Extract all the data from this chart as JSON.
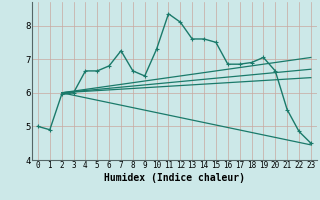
{
  "xlabel": "Humidex (Indice chaleur)",
  "background_color": "#cce8e8",
  "grid_color": "#b8d8d0",
  "line_color": "#1a7a6a",
  "xlim": [
    -0.5,
    23.5
  ],
  "ylim": [
    4.0,
    8.7
  ],
  "yticks": [
    4,
    5,
    6,
    7,
    8
  ],
  "xticks": [
    0,
    1,
    2,
    3,
    4,
    5,
    6,
    7,
    8,
    9,
    10,
    11,
    12,
    13,
    14,
    15,
    16,
    17,
    18,
    19,
    20,
    21,
    22,
    23
  ],
  "main_line": {
    "x": [
      0,
      1,
      2,
      3,
      4,
      5,
      6,
      7,
      8,
      9,
      10,
      11,
      12,
      13,
      14,
      15,
      16,
      17,
      18,
      19,
      20,
      21,
      22,
      23
    ],
    "y": [
      5.0,
      4.9,
      5.95,
      6.0,
      6.65,
      6.65,
      6.8,
      7.25,
      6.65,
      6.5,
      7.3,
      8.35,
      8.1,
      7.6,
      7.6,
      7.5,
      6.85,
      6.85,
      6.9,
      7.05,
      6.65,
      5.5,
      4.85,
      4.5
    ]
  },
  "fan_lines": [
    {
      "x0": 2.0,
      "y0": 6.0,
      "x1": 23.0,
      "y1": 7.05
    },
    {
      "x0": 2.0,
      "y0": 6.0,
      "x1": 23.0,
      "y1": 6.7
    },
    {
      "x0": 2.0,
      "y0": 6.0,
      "x1": 23.0,
      "y1": 6.45
    },
    {
      "x0": 2.0,
      "y0": 6.0,
      "x1": 23.0,
      "y1": 4.45
    }
  ]
}
